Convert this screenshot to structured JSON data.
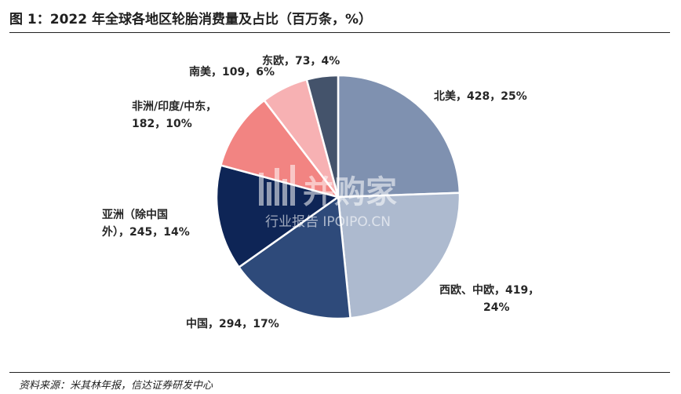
{
  "title": "图 1：2022 年全球各地区轮胎消费量及占比（百万条，%）",
  "source": "资料来源：米其林年报，信达证券研发中心",
  "watermark": {
    "brand": "并购家",
    "tagline": "行业报告 IPOIPO.CN"
  },
  "chart_data": {
    "type": "pie",
    "title": "",
    "unit": "百万条，%",
    "start": "12 o'clock",
    "direction": "clockwise",
    "slices": [
      {
        "name": "北美",
        "value": 428,
        "percent": 25,
        "color": "#7f91b0",
        "label_lines": [
          "北美，428，25%"
        ]
      },
      {
        "name": "西欧、中欧",
        "value": 419,
        "percent": 24,
        "color": "#adbacf",
        "label_lines": [
          "西欧、中欧，419，",
          "24%"
        ]
      },
      {
        "name": "中国",
        "value": 294,
        "percent": 17,
        "color": "#2e4a7a",
        "label_lines": [
          "中国，294，17%"
        ]
      },
      {
        "name": "亚洲（除中国外）",
        "value": 245,
        "percent": 14,
        "color": "#0e2556",
        "label_lines": [
          "亚洲（除中国",
          "外），245，14%"
        ]
      },
      {
        "name": "非洲/印度/中东",
        "value": 182,
        "percent": 10,
        "color": "#f28482",
        "label_lines": [
          "非洲/印度/中东，",
          "182，10%"
        ]
      },
      {
        "name": "南美",
        "value": 109,
        "percent": 6,
        "color": "#f7b1b3",
        "label_lines": [
          "南美，109，6%"
        ]
      },
      {
        "name": "东欧",
        "value": 73,
        "percent": 4,
        "color": "#44536b",
        "label_lines": [
          "东欧，73，4%"
        ]
      }
    ]
  }
}
